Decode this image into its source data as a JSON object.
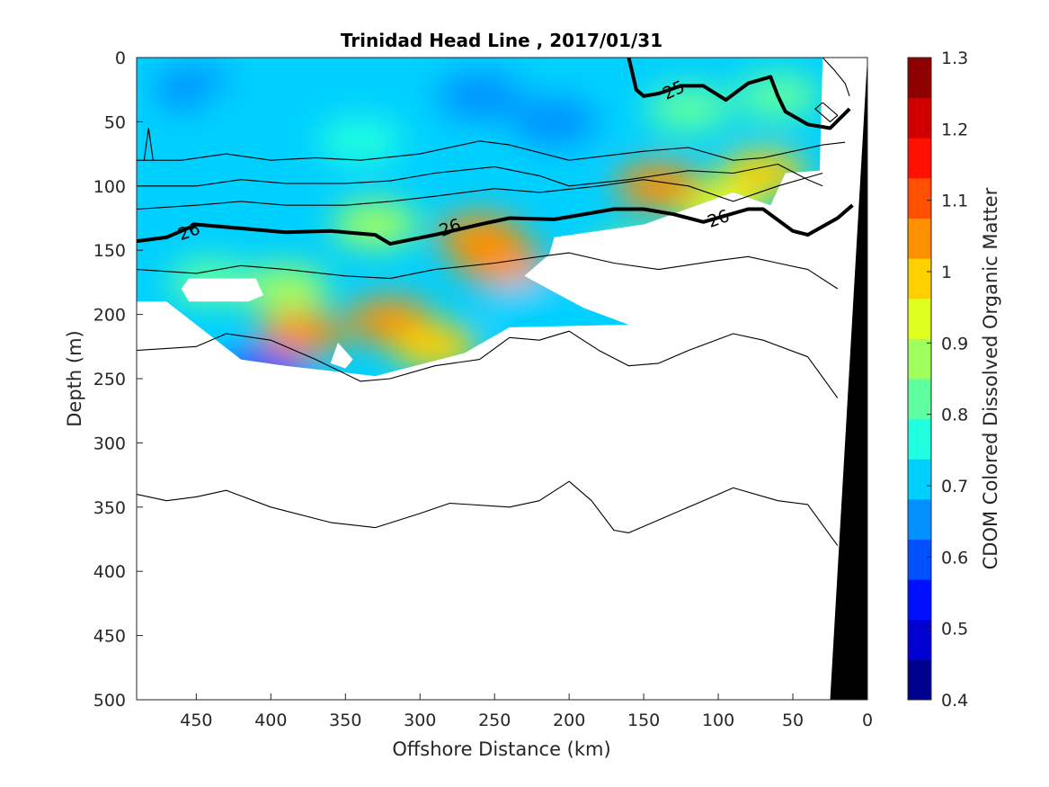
{
  "chart_data": {
    "type": "heatmap",
    "title": "Trinidad Head Line , 2017/01/31",
    "xlabel": "Offshore Distance (km)",
    "ylabel": "Depth (m)",
    "colorbar_label": "CDOM Colored Dissolved Organic Matter",
    "xlim": [
      490,
      0
    ],
    "ylim": [
      500,
      0
    ],
    "x_ticks": [
      450,
      400,
      350,
      300,
      250,
      200,
      150,
      100,
      50,
      0
    ],
    "y_ticks": [
      0,
      50,
      100,
      150,
      200,
      250,
      300,
      350,
      400,
      450,
      500
    ],
    "colorbar": {
      "min": 0.4,
      "max": 1.3,
      "ticks": [
        0.4,
        0.5,
        0.6,
        0.7,
        0.8,
        0.9,
        1,
        1.1,
        1.2,
        1.3
      ],
      "tick_labels": [
        "0.4",
        "0.5",
        "0.6",
        "0.7",
        "0.8",
        "0.9",
        "1",
        "1.1",
        "1.2",
        "1.3"
      ],
      "colors": [
        "#00008f",
        "#0000d0",
        "#0010ff",
        "#0050ff",
        "#0090ff",
        "#00d0ff",
        "#20ffdf",
        "#5fffa0",
        "#a0ff5f",
        "#dfff20",
        "#ffd000",
        "#ff9000",
        "#ff5000",
        "#ff1000",
        "#d00000",
        "#8f0000"
      ]
    },
    "data_region": [
      [
        490,
        0
      ],
      [
        30,
        0
      ],
      [
        32,
        88
      ],
      [
        55,
        90
      ],
      [
        65,
        115
      ],
      [
        90,
        105
      ],
      [
        150,
        130
      ],
      [
        210,
        140
      ],
      [
        215,
        160
      ],
      [
        230,
        170
      ],
      [
        190,
        195
      ],
      [
        160,
        208
      ],
      [
        240,
        210
      ],
      [
        270,
        230
      ],
      [
        330,
        248
      ],
      [
        390,
        240
      ],
      [
        420,
        235
      ],
      [
        470,
        190
      ],
      [
        490,
        190
      ]
    ],
    "field_blobs": [
      {
        "x": 450,
        "y": 25,
        "value": 0.68
      },
      {
        "x": 260,
        "y": 30,
        "value": 0.66
      },
      {
        "x": 210,
        "y": 50,
        "value": 0.64
      },
      {
        "x": 480,
        "y": 60,
        "value": 0.72
      },
      {
        "x": 340,
        "y": 65,
        "value": 0.74
      },
      {
        "x": 120,
        "y": 40,
        "value": 0.8
      },
      {
        "x": 60,
        "y": 30,
        "value": 0.82
      },
      {
        "x": 420,
        "y": 40,
        "value": 0.7
      },
      {
        "x": 330,
        "y": 130,
        "value": 0.88
      },
      {
        "x": 160,
        "y": 160,
        "value": 0.92
      },
      {
        "x": 100,
        "y": 115,
        "value": 0.95
      },
      {
        "x": 140,
        "y": 100,
        "value": 1.05
      },
      {
        "x": 245,
        "y": 160,
        "value": 1.07
      },
      {
        "x": 260,
        "y": 140,
        "value": 1.02
      },
      {
        "x": 320,
        "y": 205,
        "value": 1.06
      },
      {
        "x": 290,
        "y": 225,
        "value": 1.0
      },
      {
        "x": 380,
        "y": 215,
        "value": 1.02
      },
      {
        "x": 390,
        "y": 180,
        "value": 0.9
      },
      {
        "x": 440,
        "y": 175,
        "value": 0.85
      },
      {
        "x": 225,
        "y": 190,
        "value": 0.72
      },
      {
        "x": 405,
        "y": 245,
        "value": 0.62
      },
      {
        "x": 70,
        "y": 90,
        "value": 1.0
      }
    ],
    "white_gaps": [
      [
        [
          455,
          172
        ],
        [
          410,
          172
        ],
        [
          405,
          185
        ],
        [
          415,
          190
        ],
        [
          455,
          190
        ],
        [
          460,
          180
        ]
      ],
      [
        [
          355,
          222
        ],
        [
          345,
          235
        ],
        [
          350,
          242
        ],
        [
          360,
          238
        ]
      ],
      [
        [
          210,
          140
        ],
        [
          150,
          130
        ],
        [
          125,
          130
        ],
        [
          118,
          155
        ],
        [
          150,
          158
        ],
        [
          200,
          148
        ],
        [
          215,
          155
        ],
        [
          230,
          170
        ],
        [
          190,
          195
        ],
        [
          170,
          195
        ],
        [
          175,
          178
        ]
      ]
    ],
    "contours": [
      {
        "label": "",
        "points": [
          [
            490,
            80
          ],
          [
            460,
            80
          ],
          [
            430,
            75
          ],
          [
            400,
            80
          ],
          [
            370,
            78
          ],
          [
            340,
            80
          ],
          [
            300,
            75
          ],
          [
            260,
            65
          ],
          [
            240,
            68
          ],
          [
            200,
            80
          ],
          [
            150,
            73
          ],
          [
            120,
            70
          ],
          [
            90,
            80
          ],
          [
            70,
            78
          ],
          [
            30,
            68
          ],
          [
            15,
            66
          ]
        ]
      },
      {
        "label": "",
        "points": [
          [
            490,
            100
          ],
          [
            450,
            100
          ],
          [
            420,
            95
          ],
          [
            390,
            98
          ],
          [
            350,
            98
          ],
          [
            320,
            96
          ],
          [
            290,
            90
          ],
          [
            250,
            85
          ],
          [
            220,
            92
          ],
          [
            200,
            100
          ],
          [
            160,
            95
          ],
          [
            120,
            88
          ],
          [
            90,
            90
          ],
          [
            60,
            83
          ],
          [
            40,
            95
          ],
          [
            30,
            100
          ]
        ]
      },
      {
        "label": "",
        "points": [
          [
            490,
            118
          ],
          [
            450,
            115
          ],
          [
            420,
            112
          ],
          [
            390,
            115
          ],
          [
            350,
            115
          ],
          [
            320,
            112
          ],
          [
            290,
            108
          ],
          [
            250,
            102
          ],
          [
            220,
            105
          ],
          [
            180,
            100
          ],
          [
            150,
            95
          ],
          [
            120,
            100
          ],
          [
            90,
            112
          ],
          [
            60,
            100
          ],
          [
            30,
            90
          ]
        ]
      },
      {
        "label": "26",
        "points": [
          [
            490,
            143
          ],
          [
            470,
            140
          ],
          [
            450,
            130
          ],
          [
            420,
            133
          ],
          [
            390,
            136
          ],
          [
            360,
            135
          ],
          [
            330,
            138
          ],
          [
            320,
            145
          ],
          [
            290,
            138
          ],
          [
            260,
            130
          ],
          [
            240,
            125
          ],
          [
            210,
            126
          ],
          [
            170,
            118
          ],
          [
            150,
            118
          ],
          [
            130,
            122
          ],
          [
            110,
            128
          ],
          [
            80,
            118
          ],
          [
            70,
            118
          ],
          [
            50,
            135
          ],
          [
            40,
            138
          ],
          [
            20,
            125
          ],
          [
            10,
            115
          ]
        ],
        "bold": true
      },
      {
        "label": "25",
        "points": [
          [
            160,
            0
          ],
          [
            155,
            25
          ],
          [
            150,
            30
          ],
          [
            140,
            28
          ],
          [
            125,
            22
          ],
          [
            110,
            22
          ],
          [
            95,
            33
          ],
          [
            80,
            20
          ],
          [
            65,
            15
          ],
          [
            60,
            30
          ],
          [
            55,
            42
          ],
          [
            40,
            52
          ],
          [
            25,
            55
          ],
          [
            12,
            40
          ]
        ],
        "bold": true
      },
      {
        "label": "",
        "points": [
          [
            490,
            165
          ],
          [
            450,
            168
          ],
          [
            420,
            162
          ],
          [
            390,
            165
          ],
          [
            350,
            170
          ],
          [
            320,
            172
          ],
          [
            290,
            165
          ],
          [
            250,
            160
          ],
          [
            220,
            155
          ],
          [
            200,
            152
          ],
          [
            170,
            160
          ],
          [
            140,
            165
          ],
          [
            100,
            158
          ],
          [
            80,
            155
          ],
          [
            60,
            160
          ],
          [
            40,
            165
          ],
          [
            20,
            180
          ]
        ]
      },
      {
        "label": "",
        "points": [
          [
            490,
            228
          ],
          [
            450,
            225
          ],
          [
            430,
            215
          ],
          [
            400,
            220
          ],
          [
            370,
            235
          ],
          [
            340,
            252
          ],
          [
            320,
            250
          ],
          [
            290,
            240
          ],
          [
            260,
            235
          ],
          [
            240,
            218
          ],
          [
            220,
            220
          ],
          [
            200,
            213
          ],
          [
            180,
            228
          ],
          [
            160,
            240
          ],
          [
            140,
            238
          ],
          [
            120,
            228
          ],
          [
            90,
            215
          ],
          [
            70,
            220
          ],
          [
            40,
            233
          ],
          [
            20,
            265
          ]
        ]
      },
      {
        "label": "",
        "points": [
          [
            490,
            340
          ],
          [
            470,
            345
          ],
          [
            450,
            342
          ],
          [
            430,
            337
          ],
          [
            400,
            350
          ],
          [
            360,
            362
          ],
          [
            330,
            366
          ],
          [
            300,
            355
          ],
          [
            280,
            347
          ],
          [
            240,
            350
          ],
          [
            220,
            345
          ],
          [
            200,
            330
          ],
          [
            185,
            345
          ],
          [
            170,
            368
          ],
          [
            160,
            370
          ],
          [
            140,
            360
          ],
          [
            110,
            345
          ],
          [
            90,
            335
          ],
          [
            60,
            345
          ],
          [
            40,
            348
          ],
          [
            20,
            380
          ]
        ]
      },
      {
        "label": "",
        "points": [
          [
            485,
            80
          ],
          [
            482,
            55
          ],
          [
            479,
            80
          ]
        ]
      },
      {
        "label": "",
        "points": [
          [
            30,
            0
          ],
          [
            22,
            10
          ],
          [
            15,
            20
          ],
          [
            12,
            30
          ]
        ]
      },
      {
        "label": "",
        "points": [
          [
            30,
            35
          ],
          [
            35,
            40
          ],
          [
            25,
            50
          ],
          [
            20,
            45
          ],
          [
            30,
            35
          ]
        ]
      }
    ],
    "contour_labels": [
      {
        "text": "26",
        "x": 455,
        "y": 135,
        "angle": -20
      },
      {
        "text": "26",
        "x": 280,
        "y": 132,
        "angle": -20
      },
      {
        "text": "26",
        "x": 100,
        "y": 125,
        "angle": -20
      },
      {
        "text": "25",
        "x": 130,
        "y": 25,
        "angle": -25
      }
    ],
    "bathymetry": [
      [
        25,
        500
      ],
      [
        0,
        500
      ],
      [
        0,
        0
      ]
    ],
    "grid": false
  }
}
